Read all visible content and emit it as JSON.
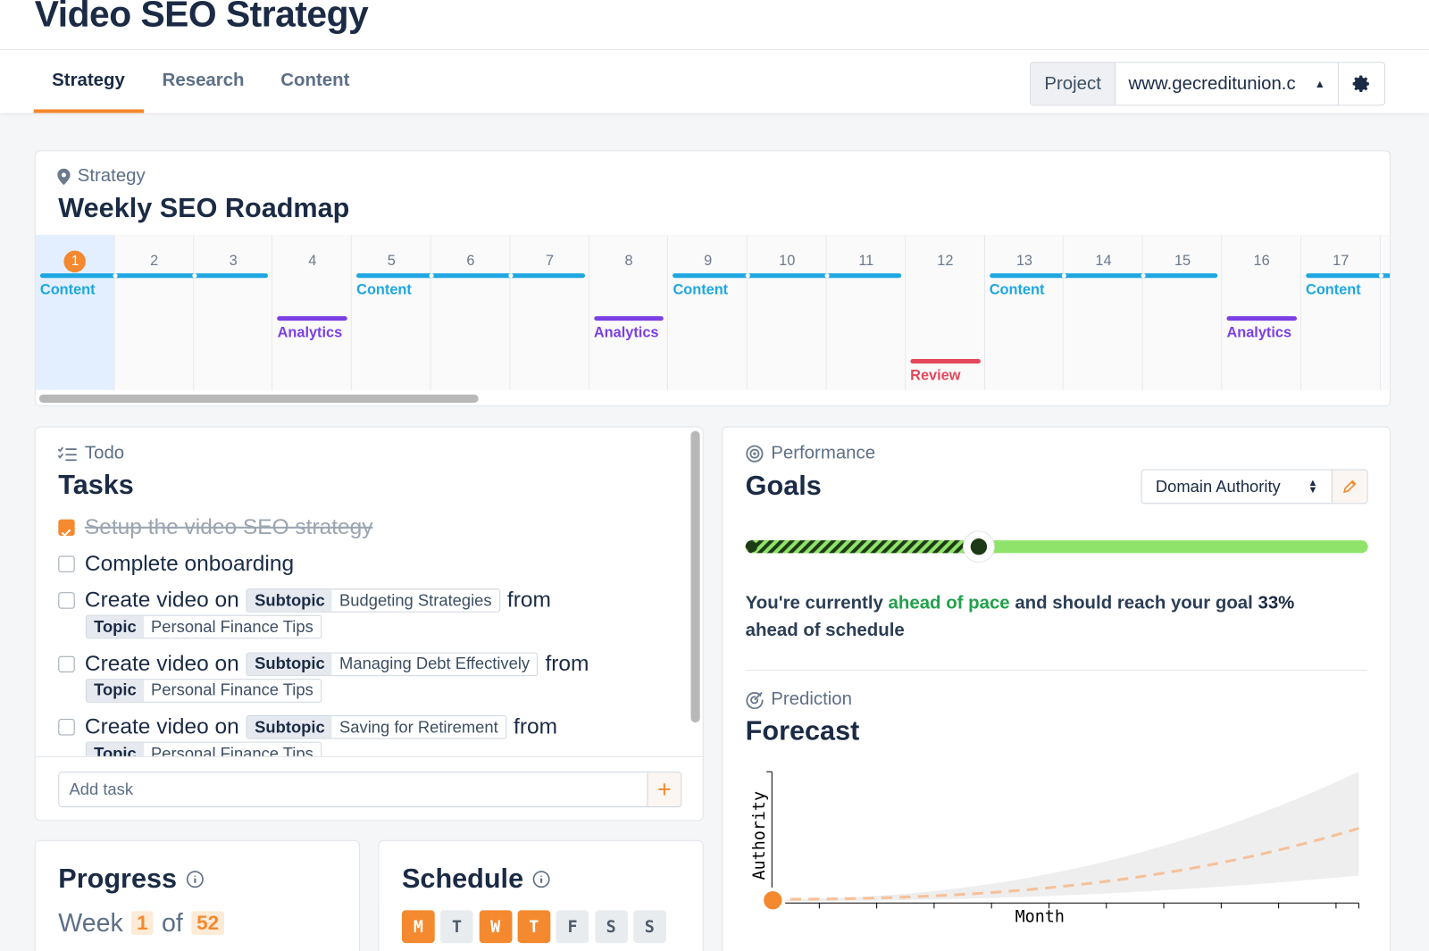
{
  "header": {
    "title": "Video SEO Strategy"
  },
  "tabs": {
    "items": [
      "Strategy",
      "Research",
      "Content"
    ],
    "active": 0
  },
  "project": {
    "label": "Project",
    "value": "www.gecreditunion.c"
  },
  "roadmap": {
    "eyebrow": "Strategy",
    "title": "Weekly SEO Roadmap",
    "current_week": 1,
    "weeks": [
      1,
      2,
      3,
      4,
      5,
      6,
      7,
      8,
      9,
      10,
      11,
      12,
      13,
      14,
      15,
      16,
      17
    ],
    "events": [
      {
        "label": "Content",
        "color": "#1ea7e1",
        "start": 1,
        "end": 3
      },
      {
        "label": "Analytics",
        "color": "#7b3fe4",
        "start": 4,
        "end": 4
      },
      {
        "label": "Content",
        "color": "#1ea7e1",
        "start": 5,
        "end": 7
      },
      {
        "label": "Analytics",
        "color": "#7b3fe4",
        "start": 8,
        "end": 8
      },
      {
        "label": "Content",
        "color": "#1ea7e1",
        "start": 9,
        "end": 11
      },
      {
        "label": "Review",
        "color": "#e5475b",
        "start": 12,
        "end": 12
      },
      {
        "label": "Content",
        "color": "#1ea7e1",
        "start": 13,
        "end": 15
      },
      {
        "label": "Analytics",
        "color": "#7b3fe4",
        "start": 16,
        "end": 16
      },
      {
        "label": "Content",
        "color": "#1ea7e1",
        "start": 17,
        "end": 18
      }
    ]
  },
  "todo": {
    "eyebrow": "Todo",
    "title": "Tasks",
    "input_placeholder": "Add task",
    "add_button": "+",
    "items": [
      {
        "text": "Setup the video SEO strategy",
        "done": true
      },
      {
        "text": "Complete onboarding",
        "done": false
      },
      {
        "text": "Create video on",
        "done": false,
        "subtopic_label": "Subtopic",
        "subtopic": "Budgeting Strategies",
        "connector": "from",
        "topic_label": "Topic",
        "topic": "Personal Finance Tips"
      },
      {
        "text": "Create video on",
        "done": false,
        "subtopic_label": "Subtopic",
        "subtopic": "Managing Debt Effectively",
        "connector": "from",
        "topic_label": "Topic",
        "topic": "Personal Finance Tips"
      },
      {
        "text": "Create video on",
        "done": false,
        "subtopic_label": "Subtopic",
        "subtopic": "Saving for Retirement",
        "connector": "from",
        "topic_label": "Topic",
        "topic": "Personal Finance Tips"
      }
    ]
  },
  "performance": {
    "eyebrow": "Performance",
    "title": "Goals",
    "metric": "Domain Authority",
    "message": [
      "You're currently",
      "ahead of pace",
      "and should reach your goal",
      "33%",
      "ahead of schedule"
    ]
  },
  "prediction": {
    "eyebrow": "Prediction",
    "title": "Forecast",
    "y_label": "Authority",
    "x_label": "Month"
  },
  "progress": {
    "title": "Progress",
    "week_label": "Week",
    "current": 1,
    "of": "of",
    "total": 52
  },
  "schedule": {
    "title": "Schedule",
    "days": [
      {
        "label": "M",
        "active": true
      },
      {
        "label": "T",
        "active": false
      },
      {
        "label": "W",
        "active": true
      },
      {
        "label": "T",
        "active": true
      },
      {
        "label": "F",
        "active": false
      },
      {
        "label": "S",
        "active": false
      },
      {
        "label": "S",
        "active": false
      }
    ]
  }
}
